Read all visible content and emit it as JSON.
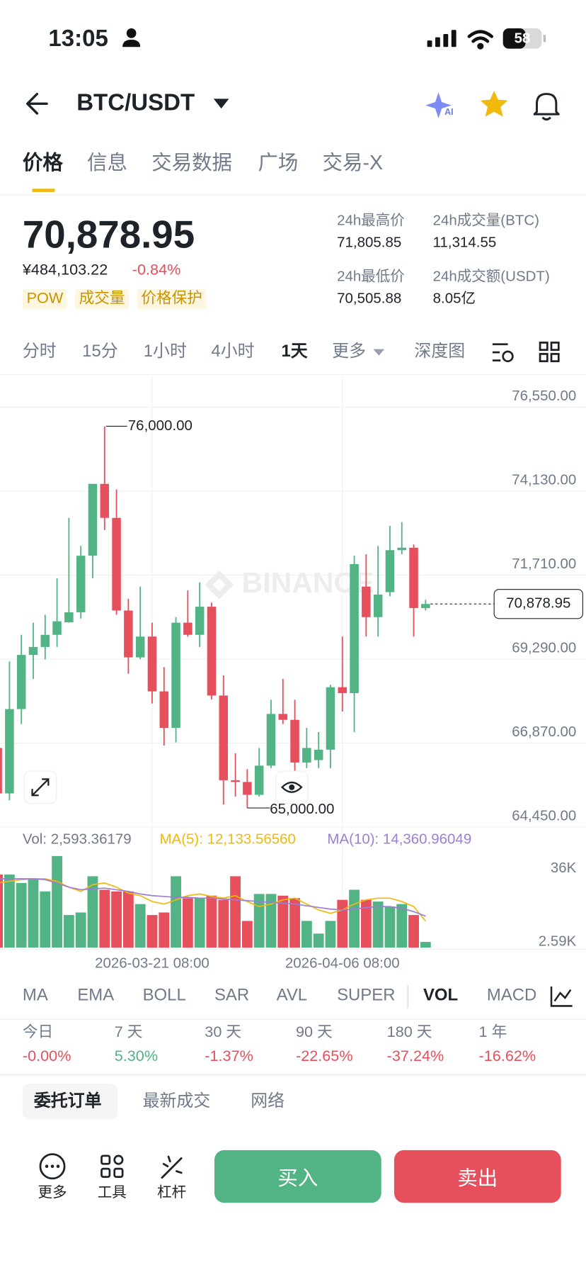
{
  "status_bar": {
    "time": "13:05",
    "battery": "58"
  },
  "header": {
    "pair": "BTC/USDT",
    "ai_badge": "AI"
  },
  "tabs": [
    "价格",
    "信息",
    "交易数据",
    "广场",
    "交易-X"
  ],
  "price": {
    "last": "70,878.95",
    "cny": "¥484,103.22",
    "change": "-0.84%",
    "tags": [
      "POW",
      "成交量",
      "价格保护"
    ]
  },
  "stats": [
    {
      "label": "24h最高价",
      "value": "71,805.85"
    },
    {
      "label": "24h成交量(BTC)",
      "value": "11,314.55"
    },
    {
      "label": "24h最低价",
      "value": "70,505.88"
    },
    {
      "label": "24h成交额(USDT)",
      "value": "8.05亿"
    }
  ],
  "intervals": [
    "分时",
    "15分",
    "1小时",
    "4小时",
    "1天",
    "更多",
    "深度图"
  ],
  "chart_data": [
    {
      "type": "candlestick",
      "categories": [
        null,
        null,
        null,
        null,
        null,
        null,
        null,
        null,
        null,
        null,
        null,
        null,
        null,
        "2026-03-21 08:00",
        null,
        null,
        null,
        null,
        null,
        null,
        null,
        null,
        null,
        null,
        null,
        null,
        null,
        null,
        null,
        "2026-04-06 08:00",
        null,
        null,
        null,
        null,
        null,
        null,
        null
      ],
      "open": [
        66730,
        65420,
        67850,
        69410,
        69640,
        69990,
        70350,
        70640,
        72270,
        74340,
        73360,
        70690,
        69340,
        69940,
        68360,
        67310,
        70340,
        69990,
        70800,
        68240,
        65800,
        65750,
        65380,
        66220,
        67710,
        67540,
        66310,
        66380,
        66680,
        68480,
        68310,
        71380,
        70500,
        71220,
        72430,
        72500,
        70760
      ],
      "high": [
        66920,
        69220,
        69990,
        70340,
        70570,
        71620,
        73360,
        72550,
        74340,
        76000,
        74180,
        71030,
        71380,
        70340,
        69060,
        70500,
        71270,
        71500,
        70920,
        68820,
        66580,
        66120,
        66730,
        68120,
        68720,
        68120,
        67310,
        67190,
        68550,
        69940,
        72270,
        72310,
        72550,
        73130,
        73240,
        72590,
        71000
      ],
      "low": [
        65220,
        65220,
        67420,
        68720,
        69280,
        69640,
        70340,
        70460,
        71620,
        73010,
        70570,
        68870,
        69290,
        68010,
        66800,
        66890,
        69940,
        69640,
        68130,
        65100,
        65330,
        65000,
        65330,
        66150,
        67420,
        65680,
        66150,
        66150,
        66150,
        67780,
        67190,
        69940,
        69940,
        71100,
        72310,
        69940,
        70690
      ],
      "close": [
        65420,
        67850,
        69410,
        69640,
        69990,
        70380,
        70640,
        72270,
        74340,
        73360,
        70690,
        69340,
        69940,
        68360,
        67310,
        70340,
        69990,
        70800,
        68240,
        65800,
        65750,
        65380,
        66220,
        67710,
        67540,
        66310,
        66730,
        66680,
        68480,
        68310,
        72030,
        70500,
        71150,
        72430,
        72500,
        70760,
        70878.95
      ],
      "ylim": [
        64430,
        77430
      ],
      "yticks": [
        {
          "value": 76550,
          "label": "76,550.00"
        },
        {
          "value": 74130,
          "label": "74,130.00"
        },
        {
          "value": 71710,
          "label": "71,710.00"
        },
        {
          "value": 69290,
          "label": "69,290.00"
        },
        {
          "value": 66870,
          "label": "66,870.00"
        },
        {
          "value": 64450,
          "label": "64,450.00"
        }
      ],
      "grid": true,
      "up_color": "#52b485",
      "down_color": "#e5505c",
      "max_label": "76,000.00",
      "min_label": "65,000.00",
      "last_label": "70,878.95",
      "watermark": "BINANCE"
    },
    {
      "type": "bar",
      "label": "Vol: 2,593.36179",
      "values": [
        33350,
        33350,
        29500,
        31420,
        25650,
        41800,
        14880,
        16040,
        32580,
        26420,
        25650,
        25650,
        19880,
        14880,
        16040,
        32580,
        22580,
        22580,
        23730,
        21810,
        32580,
        12190,
        24500,
        24500,
        23730,
        22580,
        12190,
        6420,
        12190,
        21810,
        26420,
        21810,
        21040,
        18730,
        19880,
        14880,
        2593.36179
      ],
      "series": [
        {
          "name": "MA(5): 12,133.56560",
          "color": "#f0b90b",
          "values": [
            29500,
            30270,
            31040,
            31420,
            31420,
            30270,
            27580,
            25650,
            28730,
            29500,
            27580,
            24880,
            23730,
            21040,
            19880,
            21810,
            23730,
            24500,
            23350,
            22580,
            23730,
            21040,
            18730,
            19880,
            21810,
            22580,
            19880,
            17190,
            15650,
            17190,
            19880,
            21810,
            22580,
            22580,
            21040,
            18730,
            12133.5656
          ]
        },
        {
          "name": "MA(10): 14,360.96049",
          "color": "#9c7ed6",
          "values": [
            31420,
            31420,
            31420,
            31420,
            31040,
            29500,
            27580,
            26420,
            26810,
            27190,
            26420,
            25650,
            24500,
            23730,
            23350,
            22960,
            22960,
            22580,
            22580,
            22190,
            21810,
            21420,
            21040,
            20650,
            20270,
            19880,
            19110,
            18340,
            17580,
            17190,
            17580,
            18340,
            18730,
            18730,
            17960,
            16420,
            14360.96049
          ]
        }
      ],
      "ylim": [
        0,
        42500
      ],
      "yticks": [
        {
          "value": 36000,
          "label": "36K"
        },
        {
          "value": 2590,
          "label": "2.59K"
        }
      ]
    }
  ],
  "indicators": [
    "MA",
    "EMA",
    "BOLL",
    "SAR",
    "AVL",
    "SUPER",
    "VOL",
    "MACD"
  ],
  "performance": [
    {
      "period": "今日",
      "change": "-0.00%"
    },
    {
      "period": "7 天",
      "change": "5.30%"
    },
    {
      "period": "30 天",
      "change": "-1.37%"
    },
    {
      "period": "90 天",
      "change": "-22.65%"
    },
    {
      "period": "180 天",
      "change": "-37.24%"
    },
    {
      "period": "1 年",
      "change": "-16.62%"
    }
  ],
  "order_tabs": [
    "委托订单",
    "最新成交",
    "网络"
  ],
  "toolbar": [
    "更多",
    "工具",
    "杠杆"
  ],
  "actions": {
    "buy": "买入",
    "sell": "卖出"
  }
}
